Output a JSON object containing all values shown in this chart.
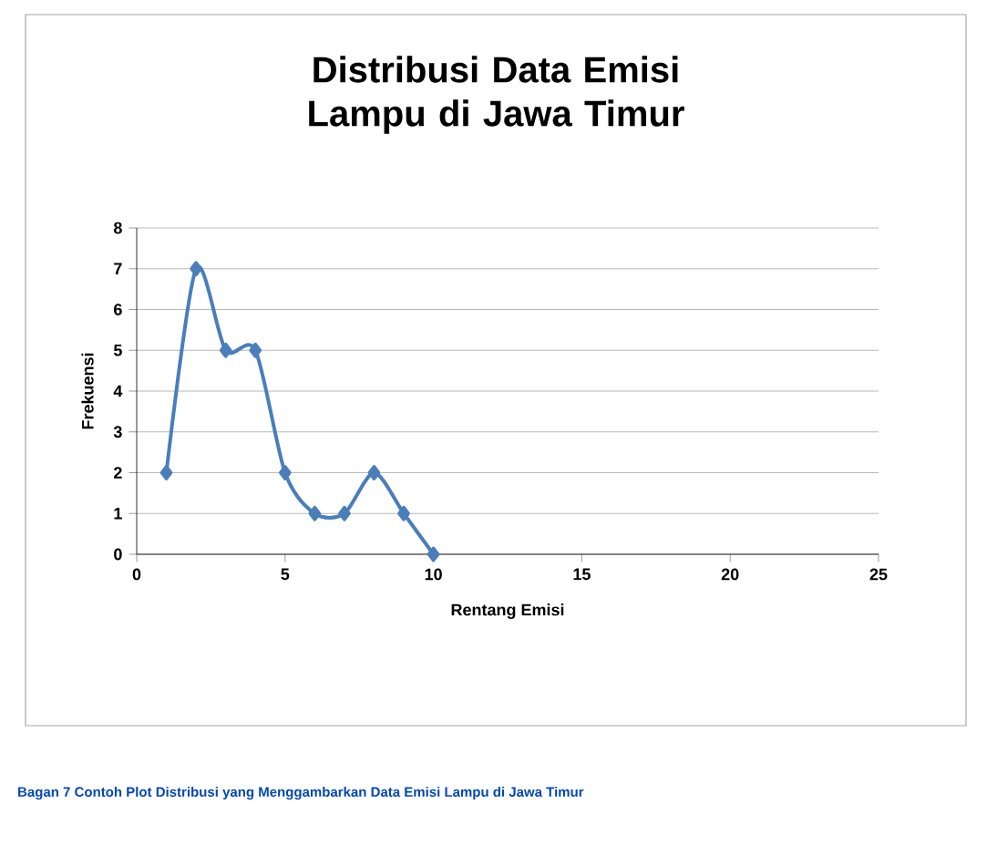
{
  "chart_data": {
    "type": "line",
    "title": "Distribusi Data Emisi Lampu di Jawa Timur",
    "xlabel": "Rentang Emisi",
    "ylabel": "Frekuensi",
    "x": [
      1,
      2,
      3,
      4,
      5,
      6,
      7,
      8,
      9,
      10
    ],
    "series": [
      {
        "color": "#4a7ebb",
        "values": [
          2,
          7,
          5,
          5,
          2,
          1,
          1,
          2,
          1,
          0
        ]
      }
    ],
    "xlim": [
      0,
      25
    ],
    "xticks": [
      0,
      5,
      10,
      15,
      20,
      25
    ],
    "ylim": [
      0,
      8
    ],
    "yticks": [
      0,
      1,
      2,
      3,
      4,
      5,
      6,
      7,
      8
    ],
    "grid": "y",
    "marker": "diamond",
    "line_style": "solid",
    "annotations": [
      "Bagan 7 Contoh Plot Distribusi yang Menggambarkan Data Emisi Lampu di Jawa Timur"
    ]
  }
}
